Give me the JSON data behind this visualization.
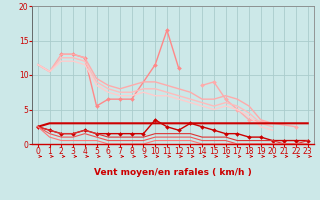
{
  "background_color": "#cce8e8",
  "grid_color": "#aacccc",
  "xlabel": "Vent moyen/en rafales ( km/h )",
  "xlim": [
    -0.5,
    23.5
  ],
  "ylim": [
    0,
    20
  ],
  "yticks": [
    0,
    5,
    10,
    15,
    20
  ],
  "xticks": [
    0,
    1,
    2,
    3,
    4,
    5,
    6,
    7,
    8,
    9,
    10,
    11,
    12,
    13,
    14,
    15,
    16,
    17,
    18,
    19,
    20,
    21,
    22,
    23
  ],
  "lines": [
    {
      "x": [
        0,
        1
      ],
      "y": [
        11.5,
        10.5
      ],
      "color": "#ffaaaa",
      "marker": null,
      "markersize": 0,
      "linewidth": 1.0,
      "linestyle": "-"
    },
    {
      "x": [
        2,
        3,
        4,
        5,
        6,
        7,
        8,
        10,
        11,
        12
      ],
      "y": [
        13.0,
        13.0,
        12.5,
        5.5,
        6.5,
        6.5,
        6.5,
        11.5,
        16.5,
        11.0
      ],
      "color": "#ff8888",
      "marker": "D",
      "markersize": 2.0,
      "linewidth": 1.0,
      "linestyle": "-"
    },
    {
      "x": [
        14,
        15,
        16,
        17,
        18,
        22
      ],
      "y": [
        8.5,
        9.0,
        6.5,
        5.0,
        3.5,
        2.5
      ],
      "color": "#ffaaaa",
      "marker": "D",
      "markersize": 2.0,
      "linewidth": 1.0,
      "linestyle": "-"
    },
    {
      "x": [
        0,
        1,
        2,
        3,
        4,
        5,
        6,
        7,
        8,
        9,
        10,
        11,
        12,
        13,
        14,
        15,
        16,
        17,
        18,
        19,
        20
      ],
      "y": [
        11.5,
        10.5,
        13.0,
        13.0,
        12.5,
        9.5,
        8.5,
        8.0,
        8.5,
        9.0,
        9.0,
        8.5,
        8.0,
        7.5,
        6.5,
        6.5,
        7.0,
        6.5,
        5.5,
        3.5,
        3.0
      ],
      "color": "#ffaaaa",
      "marker": null,
      "markersize": 0,
      "linewidth": 1.0,
      "linestyle": "-"
    },
    {
      "x": [
        0,
        1,
        2,
        3,
        4,
        5,
        6,
        7,
        8,
        9,
        10,
        11,
        12,
        13,
        14,
        15,
        16,
        17,
        18,
        19,
        20
      ],
      "y": [
        11.5,
        10.5,
        12.5,
        12.5,
        12.0,
        9.0,
        8.0,
        7.5,
        7.5,
        8.0,
        8.0,
        7.5,
        7.0,
        6.5,
        6.0,
        5.5,
        6.0,
        5.5,
        4.5,
        3.0,
        2.5
      ],
      "color": "#ffbbbb",
      "marker": null,
      "markersize": 0,
      "linewidth": 1.0,
      "linestyle": "-"
    },
    {
      "x": [
        0,
        1,
        2,
        3,
        4,
        5,
        6,
        7,
        8,
        9,
        10,
        11,
        12,
        13,
        14,
        15,
        16,
        17,
        18,
        19,
        20
      ],
      "y": [
        11.5,
        10.5,
        12.0,
        12.0,
        11.5,
        8.5,
        7.5,
        7.0,
        7.0,
        7.5,
        7.0,
        7.0,
        6.5,
        6.0,
        5.5,
        5.0,
        5.5,
        5.0,
        4.0,
        2.5,
        2.0
      ],
      "color": "#ffcccc",
      "marker": null,
      "markersize": 0,
      "linewidth": 1.0,
      "linestyle": "-"
    },
    {
      "x": [
        0,
        1,
        2,
        3,
        4,
        5,
        6,
        7,
        8,
        9,
        10,
        11,
        12,
        13,
        14,
        15,
        16,
        17,
        18,
        19,
        20,
        21,
        22,
        23
      ],
      "y": [
        2.5,
        3.0,
        3.0,
        3.0,
        3.0,
        3.0,
        3.0,
        3.0,
        3.0,
        3.0,
        3.0,
        3.0,
        3.0,
        3.0,
        3.0,
        3.0,
        3.0,
        3.0,
        3.0,
        3.0,
        3.0,
        3.0,
        3.0,
        3.0
      ],
      "color": "#cc0000",
      "marker": null,
      "markersize": 0,
      "linewidth": 1.5,
      "linestyle": "-"
    },
    {
      "x": [
        0,
        1,
        2,
        3,
        4,
        5,
        6,
        7,
        8,
        9,
        10,
        11,
        12,
        13,
        14,
        15,
        16,
        17,
        18,
        19,
        20,
        21,
        22,
        23
      ],
      "y": [
        2.5,
        2.0,
        1.5,
        1.5,
        2.0,
        1.5,
        1.5,
        1.5,
        1.5,
        1.5,
        3.5,
        2.5,
        2.0,
        3.0,
        2.5,
        2.0,
        1.5,
        1.5,
        1.0,
        1.0,
        0.5,
        0.5,
        0.5,
        0.5
      ],
      "color": "#cc0000",
      "marker": "D",
      "markersize": 2.0,
      "linewidth": 1.0,
      "linestyle": "-"
    },
    {
      "x": [
        0,
        1,
        2,
        3,
        4,
        5,
        6,
        7,
        8,
        9,
        10,
        11,
        12,
        13,
        14,
        15,
        16,
        17,
        18,
        19,
        20,
        21,
        22,
        23
      ],
      "y": [
        2.5,
        2.0,
        1.5,
        1.5,
        2.0,
        1.5,
        1.0,
        1.0,
        1.0,
        1.0,
        1.5,
        1.5,
        1.5,
        1.5,
        1.0,
        1.0,
        1.0,
        0.5,
        0.5,
        0.5,
        0.5,
        0.0,
        0.0,
        0.5
      ],
      "color": "#dd3333",
      "marker": null,
      "markersize": 0,
      "linewidth": 0.8,
      "linestyle": "-"
    },
    {
      "x": [
        0,
        1,
        2,
        3,
        4,
        5,
        6,
        7,
        8,
        9,
        10,
        11,
        12,
        13,
        14,
        15,
        16,
        17,
        18,
        19,
        20,
        21,
        22,
        23
      ],
      "y": [
        2.5,
        1.5,
        1.0,
        1.0,
        1.5,
        1.0,
        0.5,
        0.5,
        0.5,
        0.5,
        1.0,
        1.0,
        1.0,
        1.0,
        0.5,
        0.5,
        0.5,
        0.0,
        0.0,
        0.0,
        0.0,
        0.0,
        0.0,
        0.0
      ],
      "color": "#ee5555",
      "marker": null,
      "markersize": 0,
      "linewidth": 0.8,
      "linestyle": "-"
    },
    {
      "x": [
        0,
        1,
        2,
        3,
        4,
        5,
        6,
        7,
        8,
        9,
        10,
        11,
        12,
        13,
        14,
        15,
        16,
        17,
        18,
        19,
        20,
        21,
        22,
        23
      ],
      "y": [
        2.5,
        1.0,
        0.5,
        0.5,
        0.5,
        0.5,
        0.0,
        0.0,
        0.0,
        0.0,
        0.5,
        0.5,
        0.5,
        0.5,
        0.0,
        0.0,
        0.0,
        0.0,
        0.0,
        0.0,
        0.0,
        0.0,
        0.0,
        0.0
      ],
      "color": "#ff7777",
      "marker": null,
      "markersize": 0,
      "linewidth": 0.8,
      "linestyle": "-"
    }
  ],
  "arrow_color": "#cc0000",
  "axis_label_color": "#cc0000",
  "axis_fontsize": 6.5,
  "tick_fontsize": 5.5
}
